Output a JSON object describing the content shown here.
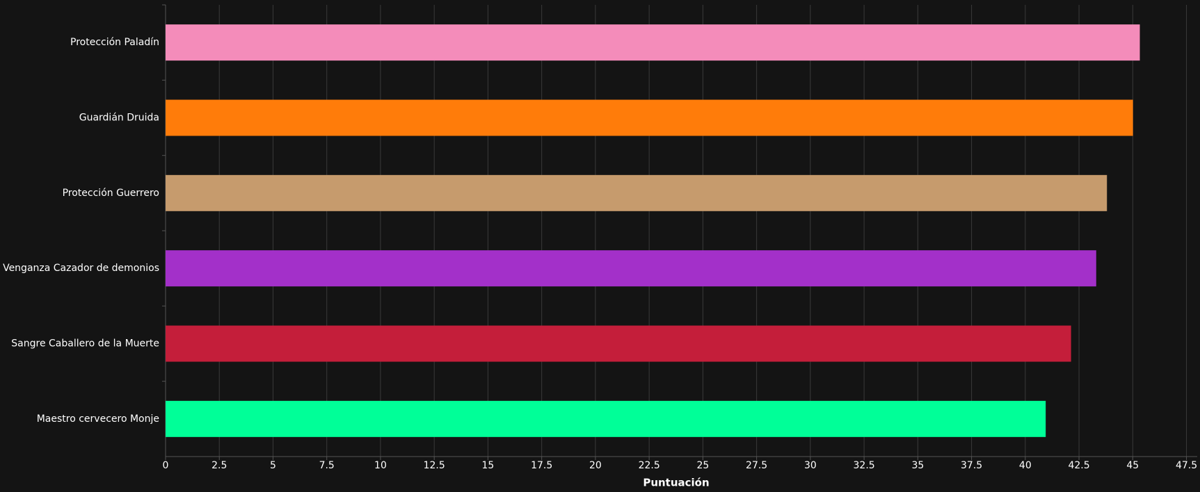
{
  "chart_data": {
    "type": "hbar",
    "x_label": "Puntuación",
    "categories": [
      "Protección Paladín",
      "Guardián Druida",
      "Protección Guerrero",
      "Venganza Cazador de demonios",
      "Sangre Caballero de la Muerte",
      "Maestro cervecero Monje"
    ],
    "values": [
      45.33,
      45.01,
      43.8,
      43.3,
      42.13,
      40.95
    ],
    "colors": [
      "#f48cba",
      "#ff7c0a",
      "#c69b6d",
      "#a330c9",
      "#c41e3a",
      "#00ff98"
    ],
    "xlim": [
      0,
      48
    ],
    "xticks": [
      0,
      2.5,
      5,
      7.5,
      10,
      12.5,
      15,
      17.5,
      20,
      22.5,
      25,
      27.5,
      30,
      32.5,
      35,
      37.5,
      40,
      42.5,
      45,
      47.5
    ],
    "grid": true
  }
}
